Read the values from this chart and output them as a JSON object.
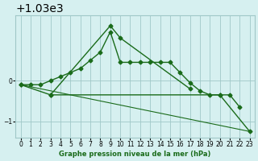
{
  "title": "Graphe pression niveau de la mer (hPa)",
  "bg_color": "#d6f0f0",
  "grid_color": "#a0c8c8",
  "line_color": "#1a6b1a",
  "xlim": [
    -0.5,
    23.5
  ],
  "ylim": [
    1028.6,
    1031.6
  ],
  "yticks": [
    1029,
    1030
  ],
  "xticks": [
    0,
    1,
    2,
    3,
    4,
    5,
    6,
    7,
    8,
    9,
    10,
    11,
    12,
    13,
    14,
    15,
    16,
    17,
    18,
    19,
    20,
    21,
    22,
    23
  ],
  "line1": [
    1029.9,
    1029.9,
    1029.9,
    1029.95,
    1030.1,
    1030.2,
    1030.3,
    1030.5,
    1030.7,
    1031.2,
    1030.45,
    1030.45,
    1030.45,
    1030.45,
    1030.45,
    1030.45,
    1030.2,
    1029.95,
    1029.75,
    1029.65,
    1029.65,
    1029.65,
    1029.35,
    null
  ],
  "line2": [
    null,
    null,
    null,
    1029.65,
    1030.1,
    null,
    null,
    null,
    null,
    1031.35,
    1031.05,
    null,
    null,
    null,
    null,
    null,
    null,
    1029.8,
    null,
    null,
    null,
    null,
    null,
    null
  ],
  "line3": [
    1029.9,
    null,
    null,
    1029.65,
    null,
    null,
    null,
    null,
    null,
    null,
    null,
    null,
    null,
    null,
    null,
    null,
    null,
    null,
    null,
    null,
    1029.65,
    null,
    null,
    1028.75
  ],
  "line4_x": [
    0,
    23
  ],
  "line4_y": [
    1029.9,
    1028.75
  ]
}
